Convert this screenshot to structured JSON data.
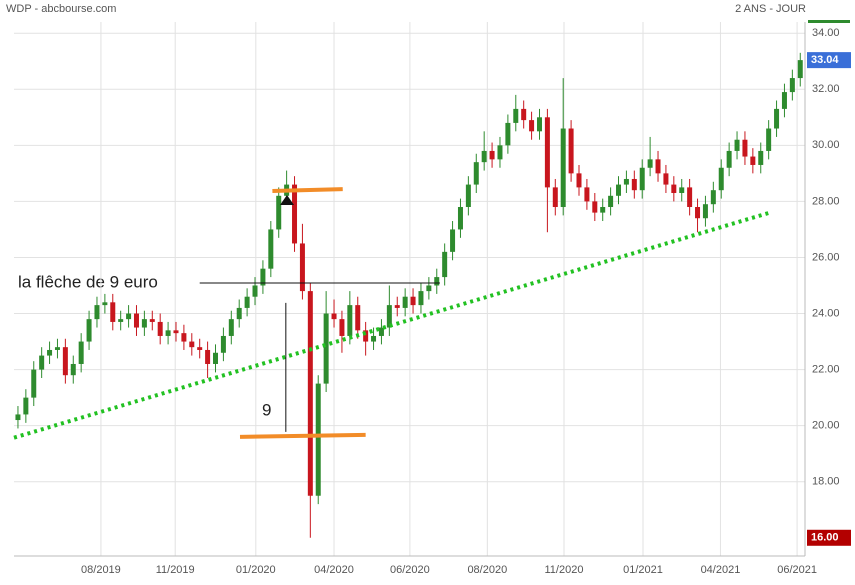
{
  "chart_data": {
    "type": "candlestick",
    "source": "WDP - abcbourse.com",
    "period": "2 ANS - JOUR",
    "up_color": "#2e8b2e",
    "down_color": "#c8161e",
    "xlim": [
      -0.5,
      99.6
    ],
    "ylim": [
      15.35,
      34.4
    ],
    "yticks": [
      {
        "value": 18,
        "label": "18.00"
      },
      {
        "value": 20,
        "label": "20.00"
      },
      {
        "value": 22,
        "label": "22.00"
      },
      {
        "value": 24,
        "label": "24.00"
      },
      {
        "value": 26,
        "label": "26.00"
      },
      {
        "value": 28,
        "label": "28.00"
      },
      {
        "value": 30,
        "label": "30.00"
      },
      {
        "value": 32,
        "label": "32.00"
      },
      {
        "value": 34,
        "label": "34.00"
      }
    ],
    "xticks": [
      {
        "value": 10.5,
        "label": "08/2019"
      },
      {
        "value": 19.9,
        "label": "11/2019"
      },
      {
        "value": 30.1,
        "label": "01/2020"
      },
      {
        "value": 40.0,
        "label": "04/2020"
      },
      {
        "value": 49.6,
        "label": "06/2020"
      },
      {
        "value": 59.4,
        "label": "08/2020"
      },
      {
        "value": 69.1,
        "label": "11/2020"
      },
      {
        "value": 79.1,
        "label": "01/2021"
      },
      {
        "value": 88.9,
        "label": "04/2021"
      },
      {
        "value": 98.6,
        "label": "06/2021"
      }
    ],
    "grid": true,
    "last_label": {
      "value": 33.04,
      "label": "33.04",
      "color": "#3a6fd8"
    },
    "min_label": {
      "value": 16,
      "label": "16.00",
      "color": "#b30000"
    },
    "candles": [
      [
        20.2,
        20.7,
        19.9,
        20.4
      ],
      [
        20.4,
        21.3,
        20.1,
        21.0
      ],
      [
        21.0,
        22.3,
        20.7,
        22.0
      ],
      [
        22.0,
        22.8,
        21.7,
        22.5
      ],
      [
        22.5,
        23.0,
        22.2,
        22.7
      ],
      [
        22.7,
        23.1,
        22.4,
        22.8
      ],
      [
        22.8,
        23.1,
        21.5,
        21.8
      ],
      [
        21.8,
        22.5,
        21.5,
        22.2
      ],
      [
        22.2,
        23.3,
        21.9,
        23.0
      ],
      [
        23.0,
        24.1,
        22.7,
        23.8
      ],
      [
        23.8,
        24.6,
        23.5,
        24.3
      ],
      [
        24.3,
        24.7,
        24.0,
        24.4
      ],
      [
        24.4,
        24.7,
        23.4,
        23.7
      ],
      [
        23.7,
        24.1,
        23.4,
        23.8
      ],
      [
        23.8,
        24.3,
        23.5,
        24.0
      ],
      [
        24.0,
        24.3,
        23.2,
        23.5
      ],
      [
        23.5,
        24.1,
        23.2,
        23.8
      ],
      [
        23.8,
        24.1,
        23.4,
        23.7
      ],
      [
        23.7,
        24.0,
        22.9,
        23.2
      ],
      [
        23.2,
        23.7,
        22.9,
        23.4
      ],
      [
        23.4,
        23.7,
        23.0,
        23.3
      ],
      [
        23.3,
        23.6,
        22.7,
        23.0
      ],
      [
        23.0,
        23.3,
        22.5,
        22.8
      ],
      [
        22.8,
        23.1,
        22.4,
        22.7
      ],
      [
        22.7,
        23.0,
        21.7,
        22.2
      ],
      [
        22.2,
        22.9,
        21.9,
        22.6
      ],
      [
        22.6,
        23.5,
        22.3,
        23.2
      ],
      [
        23.2,
        24.1,
        22.9,
        23.8
      ],
      [
        23.8,
        24.5,
        23.5,
        24.2
      ],
      [
        24.2,
        24.9,
        23.9,
        24.6
      ],
      [
        24.6,
        25.3,
        24.3,
        25.0
      ],
      [
        25.0,
        25.9,
        24.7,
        25.6
      ],
      [
        25.6,
        27.3,
        25.3,
        27.0
      ],
      [
        27.0,
        28.5,
        26.7,
        28.2
      ],
      [
        28.2,
        29.1,
        27.9,
        28.6
      ],
      [
        28.6,
        28.9,
        26.2,
        26.5
      ],
      [
        26.5,
        27.2,
        24.5,
        24.8
      ],
      [
        24.8,
        25.1,
        16.0,
        17.5
      ],
      [
        17.5,
        21.8,
        17.2,
        21.5
      ],
      [
        21.5,
        24.8,
        21.2,
        24.0
      ],
      [
        24.0,
        24.5,
        23.5,
        23.8
      ],
      [
        23.8,
        24.1,
        22.6,
        23.2
      ],
      [
        23.2,
        24.8,
        22.9,
        24.3
      ],
      [
        24.3,
        24.6,
        23.1,
        23.4
      ],
      [
        23.4,
        23.7,
        22.5,
        23.0
      ],
      [
        23.0,
        23.5,
        22.7,
        23.2
      ],
      [
        23.2,
        23.8,
        22.9,
        23.5
      ],
      [
        23.5,
        25.0,
        23.2,
        24.3
      ],
      [
        24.3,
        24.6,
        23.9,
        24.2
      ],
      [
        24.2,
        24.9,
        23.9,
        24.6
      ],
      [
        24.6,
        24.9,
        24.0,
        24.3
      ],
      [
        24.3,
        25.1,
        24.0,
        24.8
      ],
      [
        24.8,
        25.3,
        24.5,
        25.0
      ],
      [
        25.0,
        25.6,
        24.7,
        25.3
      ],
      [
        25.3,
        26.5,
        25.0,
        26.2
      ],
      [
        26.2,
        27.3,
        25.9,
        27.0
      ],
      [
        27.0,
        28.1,
        26.7,
        27.8
      ],
      [
        27.8,
        28.9,
        27.5,
        28.6
      ],
      [
        28.6,
        29.7,
        28.3,
        29.4
      ],
      [
        29.4,
        30.5,
        29.1,
        29.8
      ],
      [
        29.8,
        30.1,
        29.2,
        29.5
      ],
      [
        29.5,
        30.3,
        29.2,
        30.0
      ],
      [
        30.0,
        31.1,
        29.7,
        30.8
      ],
      [
        30.8,
        31.8,
        30.5,
        31.3
      ],
      [
        31.3,
        31.6,
        30.6,
        30.9
      ],
      [
        30.9,
        31.2,
        30.2,
        30.5
      ],
      [
        30.5,
        31.3,
        30.2,
        31.0
      ],
      [
        31.0,
        31.3,
        26.9,
        28.5
      ],
      [
        28.5,
        28.8,
        27.5,
        27.8
      ],
      [
        27.8,
        32.4,
        27.5,
        30.6
      ],
      [
        30.6,
        30.9,
        28.7,
        29.0
      ],
      [
        29.0,
        29.3,
        28.2,
        28.5
      ],
      [
        28.5,
        28.8,
        27.7,
        28.0
      ],
      [
        28.0,
        28.3,
        27.3,
        27.6
      ],
      [
        27.6,
        28.1,
        27.3,
        27.8
      ],
      [
        27.8,
        28.5,
        27.5,
        28.2
      ],
      [
        28.2,
        28.9,
        27.9,
        28.6
      ],
      [
        28.6,
        29.1,
        28.3,
        28.8
      ],
      [
        28.8,
        29.1,
        28.1,
        28.4
      ],
      [
        28.4,
        29.5,
        28.1,
        29.2
      ],
      [
        29.2,
        30.3,
        28.9,
        29.5
      ],
      [
        29.5,
        29.8,
        28.7,
        29.0
      ],
      [
        29.0,
        29.3,
        28.3,
        28.6
      ],
      [
        28.6,
        28.9,
        28.0,
        28.3
      ],
      [
        28.3,
        28.8,
        28.0,
        28.5
      ],
      [
        28.5,
        28.8,
        27.5,
        27.8
      ],
      [
        27.8,
        28.1,
        26.9,
        27.4
      ],
      [
        27.4,
        28.2,
        27.1,
        27.9
      ],
      [
        27.9,
        28.7,
        27.6,
        28.4
      ],
      [
        28.4,
        29.5,
        28.1,
        29.2
      ],
      [
        29.2,
        30.1,
        28.9,
        29.8
      ],
      [
        29.8,
        30.5,
        29.5,
        30.2
      ],
      [
        30.2,
        30.5,
        29.3,
        29.6
      ],
      [
        29.6,
        29.9,
        29.0,
        29.3
      ],
      [
        29.3,
        30.1,
        29.0,
        29.8
      ],
      [
        29.8,
        30.9,
        29.5,
        30.6
      ],
      [
        30.6,
        31.6,
        30.3,
        31.3
      ],
      [
        31.3,
        32.2,
        31.0,
        31.9
      ],
      [
        31.9,
        32.7,
        31.6,
        32.4
      ],
      [
        32.4,
        33.3,
        32.1,
        33.04
      ]
    ],
    "lines": [
      {
        "x": [
          -0.5,
          95.4
        ],
        "y": [
          19.57,
          27.62
        ],
        "color": "#22c122",
        "style": "dotted"
      },
      {
        "x": [
          32.2,
          41.1
        ],
        "y": [
          28.37,
          28.44
        ],
        "color": "#f28c28",
        "style": "solid"
      },
      {
        "x": [
          28.1,
          44.0
        ],
        "y": [
          19.6,
          19.67
        ],
        "color": "#f28c28",
        "style": "solid"
      },
      {
        "x": [
          23.0,
          53.4
        ],
        "y": [
          25.09,
          25.09
        ],
        "color": "#111111",
        "style": "thin"
      },
      {
        "x": [
          33.9,
          33.9
        ],
        "y": [
          24.38,
          19.78
        ],
        "color": "#111111",
        "style": "thin"
      }
    ],
    "annotations": [
      "la flêche de 9 euro",
      "9"
    ]
  }
}
